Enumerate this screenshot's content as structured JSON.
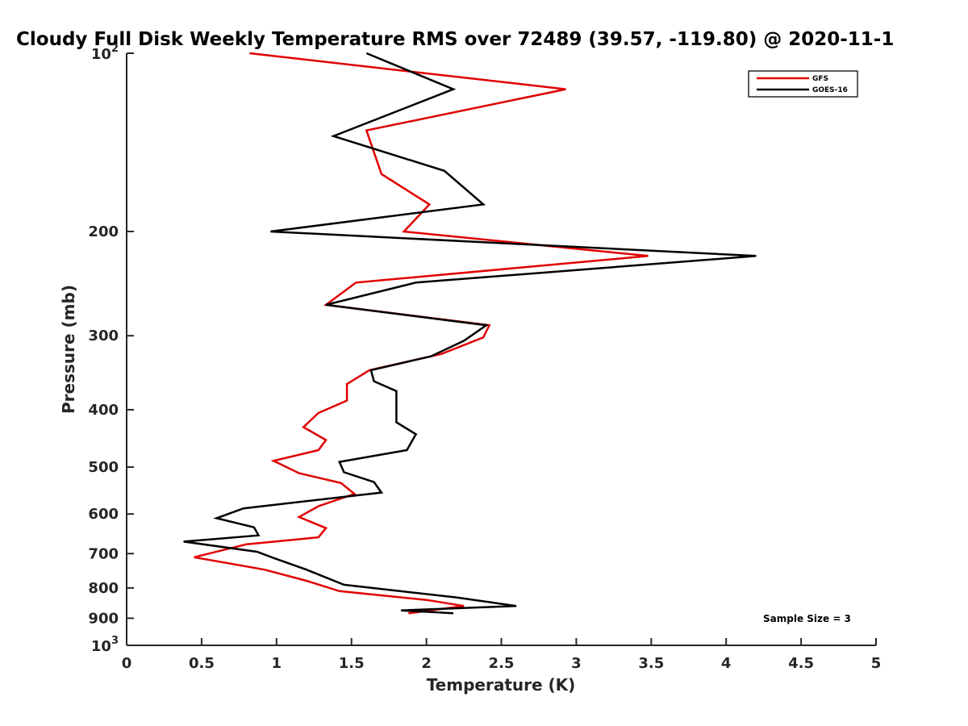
{
  "chart_data": {
    "type": "line",
    "title": "Cloudy Full Disk Weekly Temperature RMS over 72489 (39.57, -119.80) @ 2020-11-1",
    "xlabel": "Temperature (K)",
    "ylabel": "Pressure (mb)",
    "xlim": [
      0,
      5
    ],
    "ylim": [
      100,
      1000
    ],
    "y_scale": "log",
    "y_reversed": true,
    "grid": false,
    "legend_position": "top-right",
    "x_ticks": [
      "0",
      "0.5",
      "1",
      "1.5",
      "2",
      "2.5",
      "3",
      "3.5",
      "4",
      "4.5",
      "5"
    ],
    "y_ticks": [
      {
        "value": 100,
        "base": "10",
        "exp": "2"
      },
      {
        "value": 200,
        "label": "200"
      },
      {
        "value": 300,
        "label": "300"
      },
      {
        "value": 400,
        "label": "400"
      },
      {
        "value": 500,
        "label": "500"
      },
      {
        "value": 600,
        "label": "600"
      },
      {
        "value": 700,
        "label": "700"
      },
      {
        "value": 800,
        "label": "800"
      },
      {
        "value": 900,
        "label": "900"
      },
      {
        "value": 1000,
        "base": "10",
        "exp": "3"
      }
    ],
    "annotation": "Sample Size = 3",
    "series": [
      {
        "name": "GFS",
        "color": "#e00000",
        "points": [
          [
            0.82,
            100
          ],
          [
            2.93,
            115
          ],
          [
            1.6,
            135
          ],
          [
            1.7,
            160
          ],
          [
            2.02,
            180
          ],
          [
            1.85,
            200
          ],
          [
            3.48,
            220
          ],
          [
            1.53,
            244
          ],
          [
            1.33,
            266
          ],
          [
            2.42,
            288
          ],
          [
            2.38,
            302
          ],
          [
            2.1,
            322
          ],
          [
            1.62,
            343
          ],
          [
            1.47,
            362
          ],
          [
            1.47,
            386
          ],
          [
            1.28,
            405
          ],
          [
            1.18,
            428
          ],
          [
            1.33,
            450
          ],
          [
            1.28,
            468
          ],
          [
            0.98,
            488
          ],
          [
            1.15,
            512
          ],
          [
            1.43,
            532
          ],
          [
            1.52,
            555
          ],
          [
            1.28,
            582
          ],
          [
            1.15,
            607
          ],
          [
            1.33,
            634
          ],
          [
            1.28,
            657
          ],
          [
            0.8,
            675
          ],
          [
            0.45,
            710
          ],
          [
            0.92,
            745
          ],
          [
            1.2,
            778
          ],
          [
            1.42,
            810
          ],
          [
            2.0,
            838
          ],
          [
            2.25,
            858
          ],
          [
            1.88,
            883
          ]
        ]
      },
      {
        "name": "GOES-16",
        "color": "#000000",
        "points": [
          [
            1.6,
            100
          ],
          [
            2.18,
            115
          ],
          [
            1.38,
            138
          ],
          [
            2.12,
            158
          ],
          [
            2.38,
            180
          ],
          [
            0.96,
            200
          ],
          [
            4.2,
            220
          ],
          [
            1.93,
            244
          ],
          [
            1.33,
            266
          ],
          [
            2.4,
            288
          ],
          [
            2.25,
            306
          ],
          [
            2.03,
            325
          ],
          [
            1.63,
            343
          ],
          [
            1.65,
            358
          ],
          [
            1.8,
            372
          ],
          [
            1.8,
            396
          ],
          [
            1.8,
            420
          ],
          [
            1.93,
            440
          ],
          [
            1.87,
            468
          ],
          [
            1.42,
            490
          ],
          [
            1.45,
            510
          ],
          [
            1.65,
            530
          ],
          [
            1.7,
            552
          ],
          [
            0.78,
            587
          ],
          [
            0.6,
            610
          ],
          [
            0.85,
            632
          ],
          [
            0.88,
            652
          ],
          [
            0.38,
            668
          ],
          [
            0.87,
            695
          ],
          [
            0.98,
            712
          ],
          [
            1.2,
            745
          ],
          [
            1.45,
            790
          ],
          [
            2.2,
            830
          ],
          [
            2.6,
            858
          ],
          [
            1.83,
            873
          ],
          [
            2.18,
            883
          ]
        ]
      }
    ]
  }
}
